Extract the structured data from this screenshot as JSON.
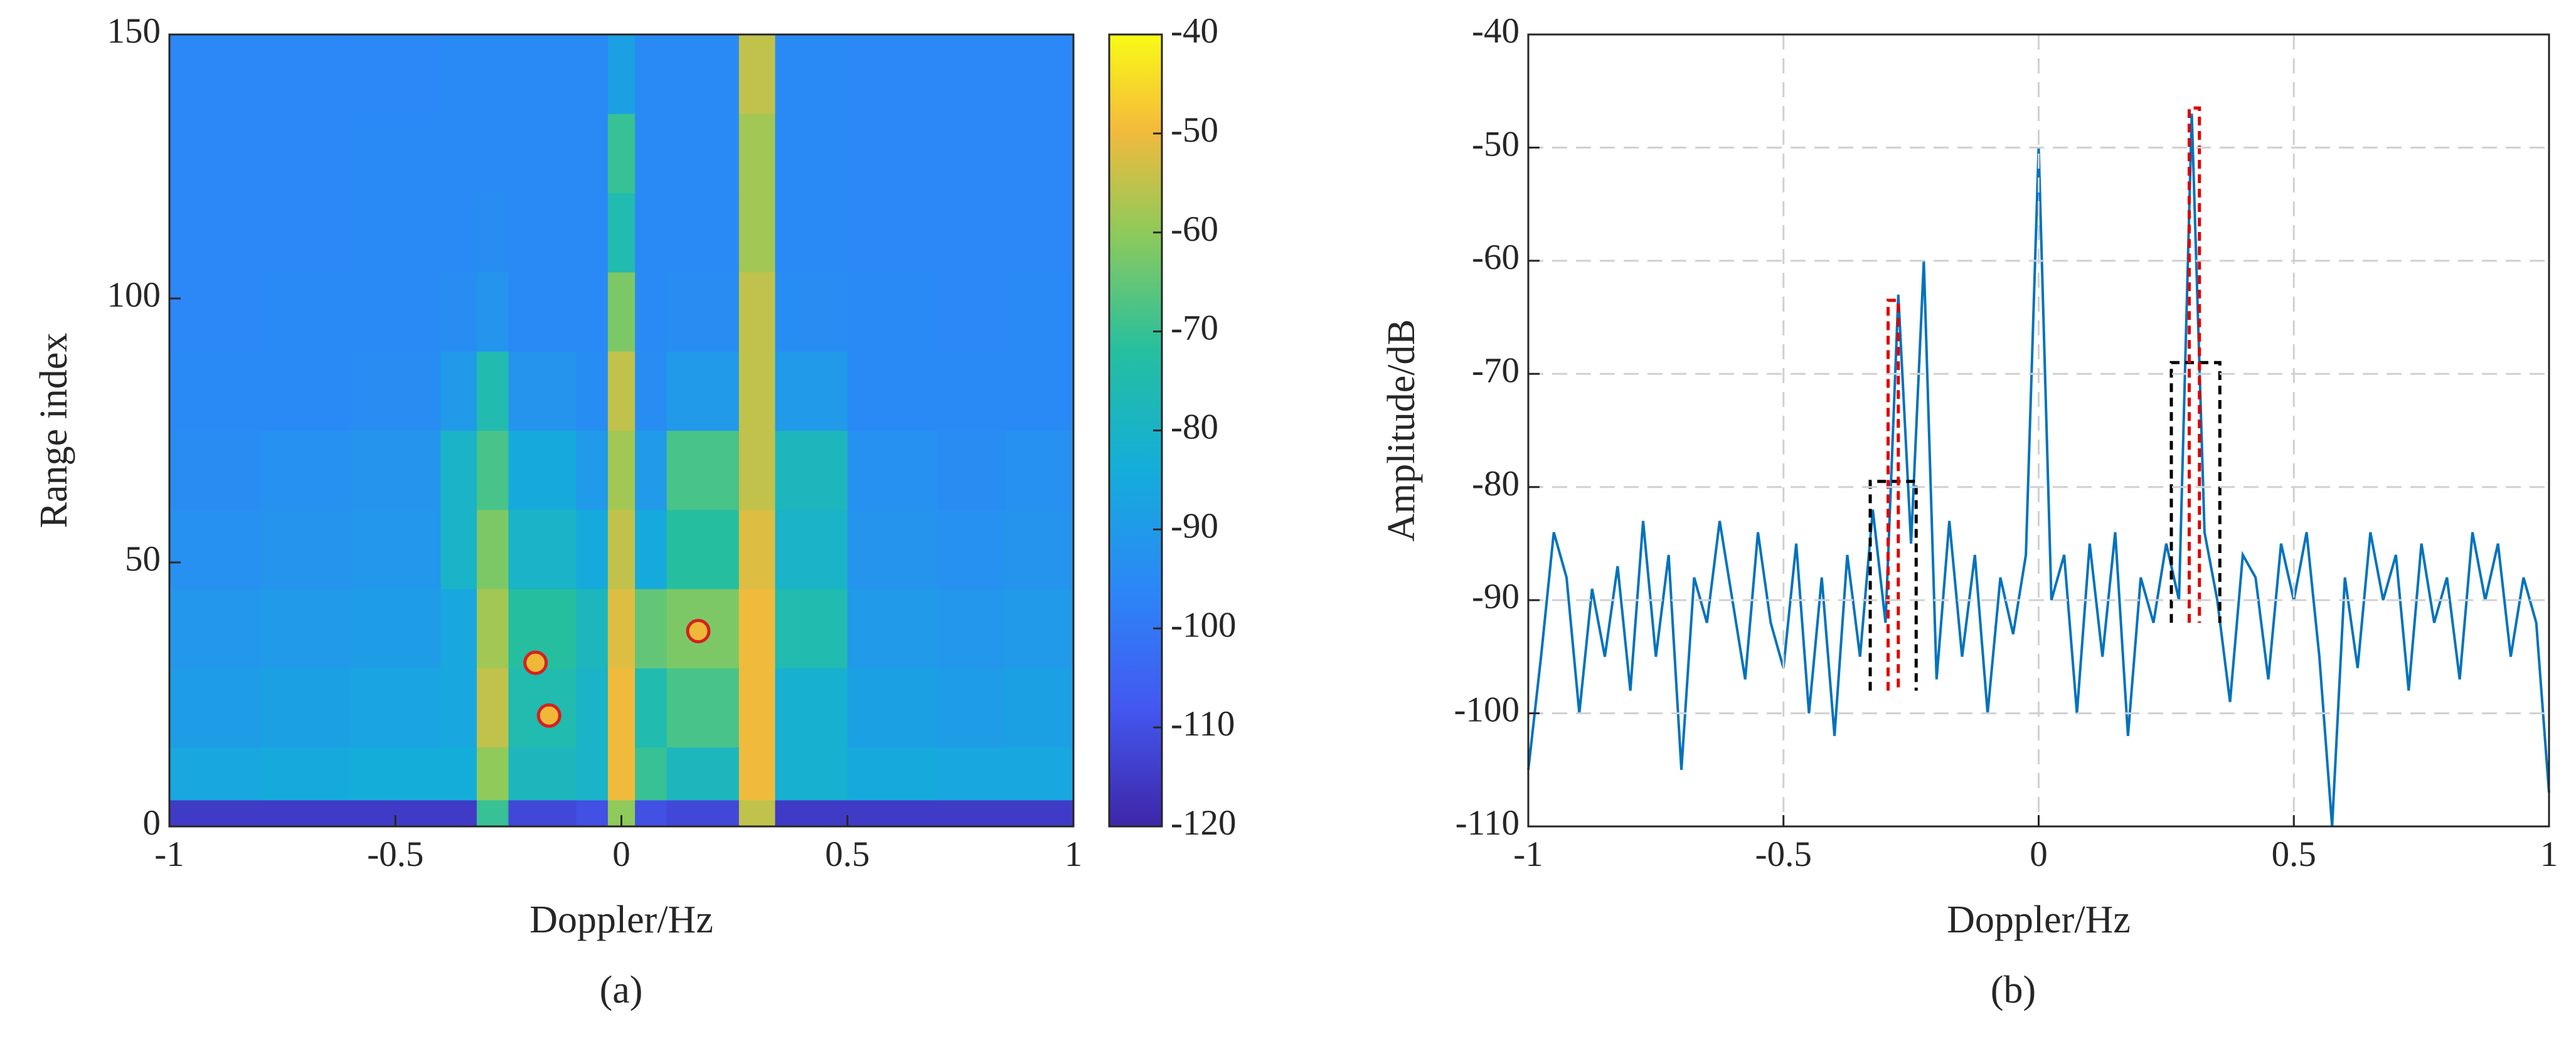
{
  "chart_data": [
    {
      "type": "heatmap",
      "label": "(a)",
      "xlabel": "Doppler/Hz",
      "ylabel": "Range index",
      "xlim": [
        -1,
        1
      ],
      "xticks": [
        -1,
        -0.5,
        0,
        0.5,
        1
      ],
      "ylim": [
        0,
        150
      ],
      "yticks": [
        0,
        50,
        100,
        150
      ],
      "clim": [
        -120,
        -40
      ],
      "cticks": [
        -40,
        -50,
        -60,
        -70,
        -80,
        -90,
        -100,
        -110,
        -120
      ],
      "x_edges": [
        -1,
        -0.8,
        -0.6,
        -0.4,
        -0.32,
        -0.25,
        -0.1,
        -0.03,
        0.03,
        0.1,
        0.26,
        0.34,
        0.5,
        0.7,
        0.85,
        1
      ],
      "y_edges": [
        0,
        5,
        15,
        30,
        45,
        60,
        75,
        90,
        105,
        120,
        135,
        150
      ],
      "z": [
        [
          -115,
          -115,
          -115,
          -115,
          -70,
          -112,
          -110,
          -60,
          -110,
          -112,
          -55,
          -115,
          -115,
          -115,
          -115
        ],
        [
          -86,
          -85,
          -84,
          -84,
          -60,
          -78,
          -80,
          -50,
          -70,
          -78,
          -50,
          -82,
          -85,
          -86,
          -86
        ],
        [
          -89,
          -88,
          -87,
          -86,
          -55,
          -75,
          -80,
          -50,
          -75,
          -68,
          -50,
          -82,
          -88,
          -89,
          -88
        ],
        [
          -91,
          -90,
          -89,
          -86,
          -58,
          -72,
          -78,
          -52,
          -65,
          -62,
          -50,
          -75,
          -90,
          -91,
          -90
        ],
        [
          -93,
          -92,
          -91,
          -80,
          -62,
          -80,
          -85,
          -55,
          -85,
          -72,
          -52,
          -80,
          -92,
          -93,
          -92
        ],
        [
          -94,
          -93,
          -92,
          -80,
          -68,
          -85,
          -90,
          -58,
          -90,
          -68,
          -55,
          -78,
          -93,
          -94,
          -93
        ],
        [
          -95,
          -95,
          -94,
          -90,
          -75,
          -92,
          -94,
          -55,
          -94,
          -90,
          -55,
          -90,
          -95,
          -95,
          -95
        ],
        [
          -96,
          -95,
          -95,
          -94,
          -92,
          -95,
          -95,
          -62,
          -95,
          -94,
          -55,
          -94,
          -95,
          -96,
          -95
        ],
        [
          -96,
          -96,
          -95,
          -95,
          -94,
          -95,
          -95,
          -75,
          -95,
          -95,
          -58,
          -95,
          -96,
          -96,
          -96
        ],
        [
          -96,
          -96,
          -95,
          -95,
          -95,
          -95,
          -95,
          -70,
          -95,
          -95,
          -58,
          -95,
          -96,
          -96,
          -96
        ],
        [
          -96,
          -96,
          -96,
          -95,
          -95,
          -95,
          -95,
          -88,
          -95,
          -95,
          -55,
          -95,
          -96,
          -96,
          -96
        ]
      ],
      "markers": [
        {
          "x": -0.19,
          "y": 31
        },
        {
          "x": -0.16,
          "y": 21
        },
        {
          "x": 0.17,
          "y": 37
        }
      ]
    },
    {
      "type": "line",
      "label": "(b)",
      "xlabel": "Doppler/Hz",
      "ylabel": "Amplitude/dB",
      "xlim": [
        -1,
        1
      ],
      "xticks": [
        -1,
        -0.5,
        0,
        0.5,
        1
      ],
      "ylim": [
        -110,
        -40
      ],
      "yticks": [
        -40,
        -50,
        -60,
        -70,
        -80,
        -90,
        -100,
        -110
      ],
      "grid": true,
      "series": [
        {
          "color": "#0072bd",
          "x": [
            -1,
            -0.975,
            -0.95,
            -0.925,
            -0.9,
            -0.875,
            -0.85,
            -0.825,
            -0.8,
            -0.775,
            -0.75,
            -0.725,
            -0.7,
            -0.675,
            -0.65,
            -0.625,
            -0.6,
            -0.575,
            -0.55,
            -0.525,
            -0.5,
            -0.475,
            -0.45,
            -0.425,
            -0.4,
            -0.375,
            -0.35,
            -0.325,
            -0.3,
            -0.275,
            -0.25,
            -0.225,
            -0.2,
            -0.175,
            -0.15,
            -0.125,
            -0.1,
            -0.075,
            -0.05,
            -0.025,
            0,
            0.025,
            0.05,
            0.075,
            0.1,
            0.125,
            0.15,
            0.175,
            0.2,
            0.225,
            0.25,
            0.275,
            0.3,
            0.325,
            0.35,
            0.375,
            0.4,
            0.425,
            0.45,
            0.475,
            0.5,
            0.525,
            0.55,
            0.575,
            0.6,
            0.625,
            0.65,
            0.675,
            0.7,
            0.725,
            0.75,
            0.775,
            0.8,
            0.825,
            0.85,
            0.875,
            0.9,
            0.925,
            0.95,
            0.975,
            1
          ],
          "values": [
            -105,
            -95,
            -84,
            -88,
            -100,
            -89,
            -95,
            -87,
            -98,
            -83,
            -95,
            -86,
            -105,
            -88,
            -92,
            -83,
            -90,
            -97,
            -84,
            -92,
            -96,
            -85,
            -100,
            -88,
            -102,
            -86,
            -95,
            -82,
            -92,
            -63,
            -85,
            -60,
            -97,
            -83,
            -95,
            -86,
            -100,
            -88,
            -93,
            -86,
            -50,
            -90,
            -86,
            -100,
            -85,
            -95,
            -84,
            -102,
            -88,
            -92,
            -85,
            -90,
            -47,
            -84,
            -90,
            -99,
            -86,
            -88,
            -97,
            -85,
            -90,
            -84,
            -95,
            -110,
            -88,
            -96,
            -84,
            -90,
            -86,
            -98,
            -85,
            -92,
            -88,
            -97,
            -84,
            -90,
            -85,
            -95,
            -88,
            -92,
            -107
          ]
        }
      ],
      "boxes": [
        {
          "x": [
            -0.33,
            -0.24
          ],
          "y": [
            -98,
            -79.5
          ],
          "color": "#000000"
        },
        {
          "x": [
            -0.295,
            -0.275
          ],
          "y": [
            -98,
            -63.5
          ],
          "color": "#e00000"
        },
        {
          "x": [
            0.26,
            0.355
          ],
          "y": [
            -92,
            -69
          ],
          "color": "#000000"
        },
        {
          "x": [
            0.295,
            0.315
          ],
          "y": [
            -92,
            -46.5
          ],
          "color": "#e00000"
        }
      ]
    }
  ]
}
